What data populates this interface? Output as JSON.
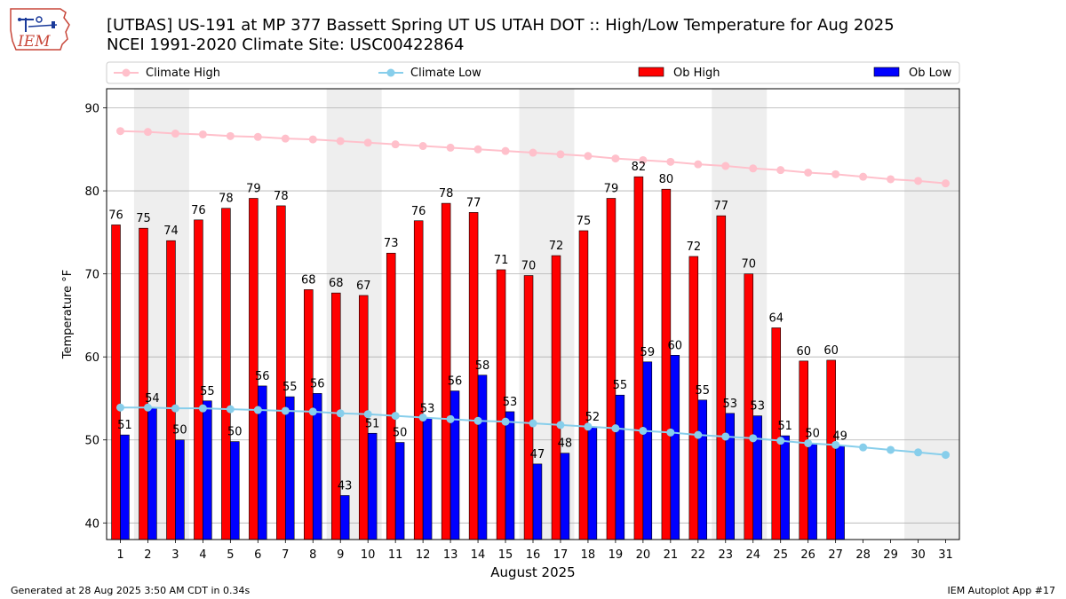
{
  "title_line1": "[UTBAS] US-191 at MP 377 Bassett Spring  UT US UTAH DOT :: High/Low Temperature for Aug 2025",
  "title_line2": "NCEI 1991-2020 Climate Site: USC00422864",
  "logo_text": "IEM",
  "footer_left": "Generated at 28 Aug 2025 3:50 AM CDT in 0.34s",
  "footer_right": "IEM Autoplot App #17",
  "colors": {
    "ob_high": "#ff0000",
    "ob_low": "#0000ff",
    "climate_high": "#ffc0cb",
    "climate_low": "#87ceeb",
    "weekend_band": "#eeeeee",
    "grid": "#b0b0b0"
  },
  "chart_data": {
    "type": "bar",
    "xlabel": "August 2025",
    "ylabel": "Temperature °F",
    "ylim": [
      38,
      92.3
    ],
    "yticks": [
      40,
      50,
      60,
      70,
      80,
      90
    ],
    "grid": "horizontal",
    "legend_position": "top",
    "categories": [
      "1",
      "2",
      "3",
      "4",
      "5",
      "6",
      "7",
      "8",
      "9",
      "10",
      "11",
      "12",
      "13",
      "14",
      "15",
      "16",
      "17",
      "18",
      "19",
      "20",
      "21",
      "22",
      "23",
      "24",
      "25",
      "26",
      "27",
      "28",
      "29",
      "30",
      "31"
    ],
    "shaded_days": [
      2,
      9,
      16,
      23,
      30
    ],
    "series": [
      {
        "name": "Ob High",
        "kind": "bar",
        "values": [
          76,
          75,
          74,
          76,
          78,
          79,
          78,
          68,
          68,
          67,
          73,
          76,
          78,
          77,
          71,
          70,
          72,
          75,
          79,
          82,
          80,
          72,
          77,
          70,
          64,
          60,
          60,
          null,
          null,
          null,
          null
        ],
        "plotted": [
          75.9,
          75.5,
          74.0,
          76.5,
          77.9,
          79.1,
          78.2,
          68.1,
          67.7,
          67.4,
          72.5,
          76.4,
          78.5,
          77.4,
          70.5,
          69.8,
          72.2,
          75.2,
          79.1,
          81.7,
          80.2,
          72.1,
          77.0,
          70.0,
          63.5,
          59.5,
          59.6,
          null,
          null,
          null,
          null
        ]
      },
      {
        "name": "Ob Low",
        "kind": "bar",
        "values": [
          51,
          54,
          50,
          55,
          50,
          56,
          55,
          56,
          43,
          51,
          50,
          53,
          56,
          58,
          53,
          47,
          48,
          52,
          55,
          59,
          60,
          55,
          53,
          53,
          51,
          50,
          49,
          null,
          null,
          null,
          null
        ],
        "plotted": [
          50.6,
          53.8,
          50.0,
          54.7,
          49.8,
          56.5,
          55.2,
          55.6,
          43.3,
          50.8,
          49.7,
          52.6,
          55.9,
          57.8,
          53.4,
          47.1,
          48.4,
          51.6,
          55.4,
          59.4,
          60.2,
          54.8,
          53.2,
          52.9,
          50.5,
          49.6,
          49.3,
          null,
          null,
          null,
          null
        ]
      },
      {
        "name": "Climate High",
        "kind": "line",
        "values": [
          87.2,
          87.1,
          86.9,
          86.8,
          86.6,
          86.5,
          86.3,
          86.2,
          86.0,
          85.8,
          85.6,
          85.4,
          85.2,
          85.0,
          84.8,
          84.6,
          84.4,
          84.2,
          83.9,
          83.7,
          83.5,
          83.2,
          83.0,
          82.7,
          82.5,
          82.2,
          82.0,
          81.7,
          81.4,
          81.2,
          80.9
        ]
      },
      {
        "name": "Climate Low",
        "kind": "line",
        "values": [
          53.9,
          53.9,
          53.8,
          53.8,
          53.7,
          53.6,
          53.5,
          53.4,
          53.2,
          53.1,
          52.9,
          52.7,
          52.5,
          52.3,
          52.2,
          52.0,
          51.8,
          51.6,
          51.4,
          51.1,
          50.9,
          50.6,
          50.4,
          50.2,
          49.9,
          49.6,
          49.4,
          49.1,
          48.8,
          48.5,
          48.2
        ]
      }
    ]
  }
}
